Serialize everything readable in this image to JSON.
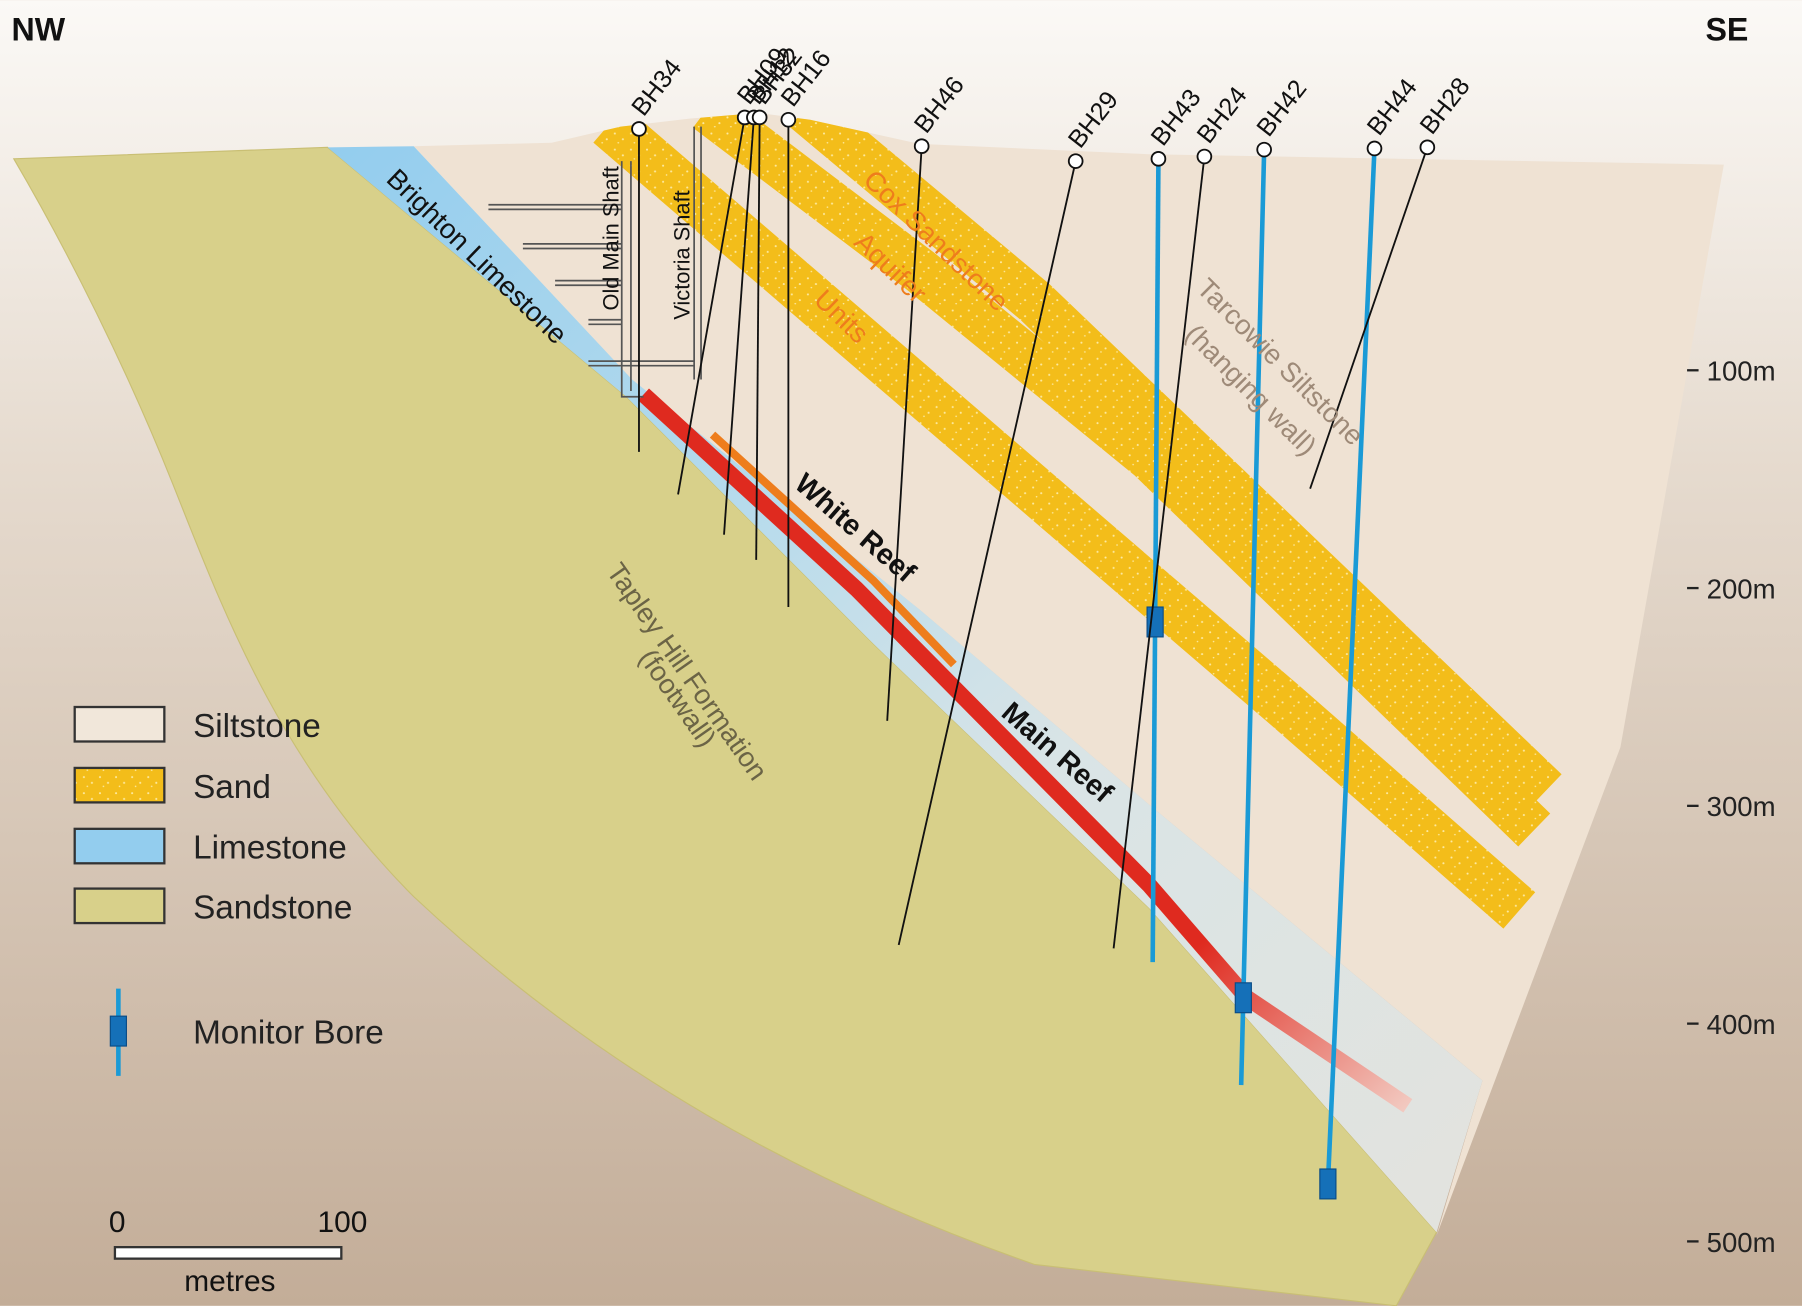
{
  "orientation": {
    "left": "NW",
    "right": "SE"
  },
  "boreholes": [
    "BH34",
    "BH09",
    "BH12",
    "BH32",
    "BH16",
    "BH46",
    "BH29",
    "BH43",
    "BH24",
    "BH42",
    "BH44",
    "BH28"
  ],
  "labels": {
    "brighton": "Brighton Limestone",
    "old_shaft": "Old Main Shaft",
    "victoria_shaft": "Victoria Shaft",
    "cox_1": "Cox Sandstone",
    "cox_2": "Aquifer",
    "cox_3": "Units",
    "white_reef": "White Reef",
    "main_reef": "Main Reef",
    "tarcowie_1": "Tarcowie Siltstone",
    "tarcowie_2": "(hanging wall)",
    "tapley_1": "Tapley Hill Formation",
    "tapley_2": "(footwall)"
  },
  "depth_scale": [
    "100m",
    "200m",
    "300m",
    "400m",
    "500m"
  ],
  "legend": [
    "Siltstone",
    "Sand",
    "Limestone",
    "Sandstone",
    "Monitor Bore"
  ],
  "scale_bar": {
    "start": "0",
    "end": "100",
    "unit": "metres"
  }
}
